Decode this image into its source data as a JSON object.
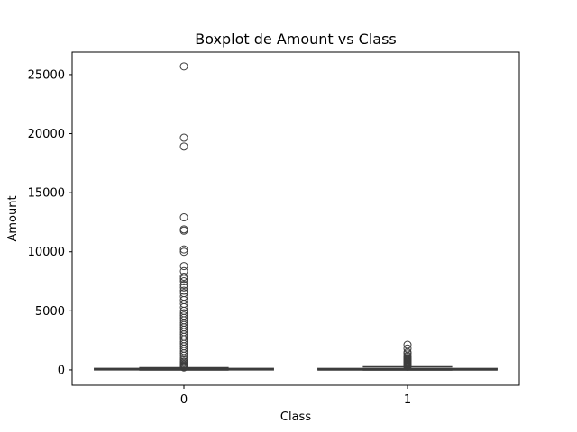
{
  "chart_data": {
    "type": "boxplot",
    "title": "Boxplot de Amount vs Class",
    "xlabel": "Class",
    "ylabel": "Amount",
    "categories": [
      "0",
      "1"
    ],
    "ylim": [
      -1300,
      26900
    ],
    "yticks": [
      0,
      5000,
      10000,
      15000,
      20000,
      25000
    ],
    "grid": false,
    "box_color": "#3d3d3d",
    "boxes": [
      {
        "category": "0",
        "q1": 5.6,
        "median": 22,
        "q3": 77,
        "whisker_low": 0,
        "whisker_high": 185,
        "outliers": [
          25691,
          19656,
          18910,
          12910,
          11898,
          11789,
          10199,
          10000,
          8790,
          8360,
          7880,
          7712,
          7500,
          7200,
          6982,
          6700,
          6500,
          6200,
          5900,
          5600,
          5300,
          5000,
          4800,
          4600,
          4400,
          4200,
          4000,
          3800,
          3600,
          3400,
          3200,
          3000,
          2800,
          2600,
          2400,
          2200,
          2000,
          1800,
          1600,
          1400,
          1200,
          1000,
          850,
          700,
          600,
          500,
          400,
          320,
          260,
          210
        ]
      },
      {
        "category": "1",
        "q1": 1,
        "median": 9.25,
        "q3": 105.9,
        "whisker_low": 0,
        "whisker_high": 262,
        "outliers": [
          2125,
          1810,
          1500,
          1390,
          1200,
          1100,
          1000,
          930,
          850,
          780,
          720,
          660,
          600,
          540,
          480,
          430,
          380,
          340,
          310,
          280
        ]
      }
    ]
  }
}
